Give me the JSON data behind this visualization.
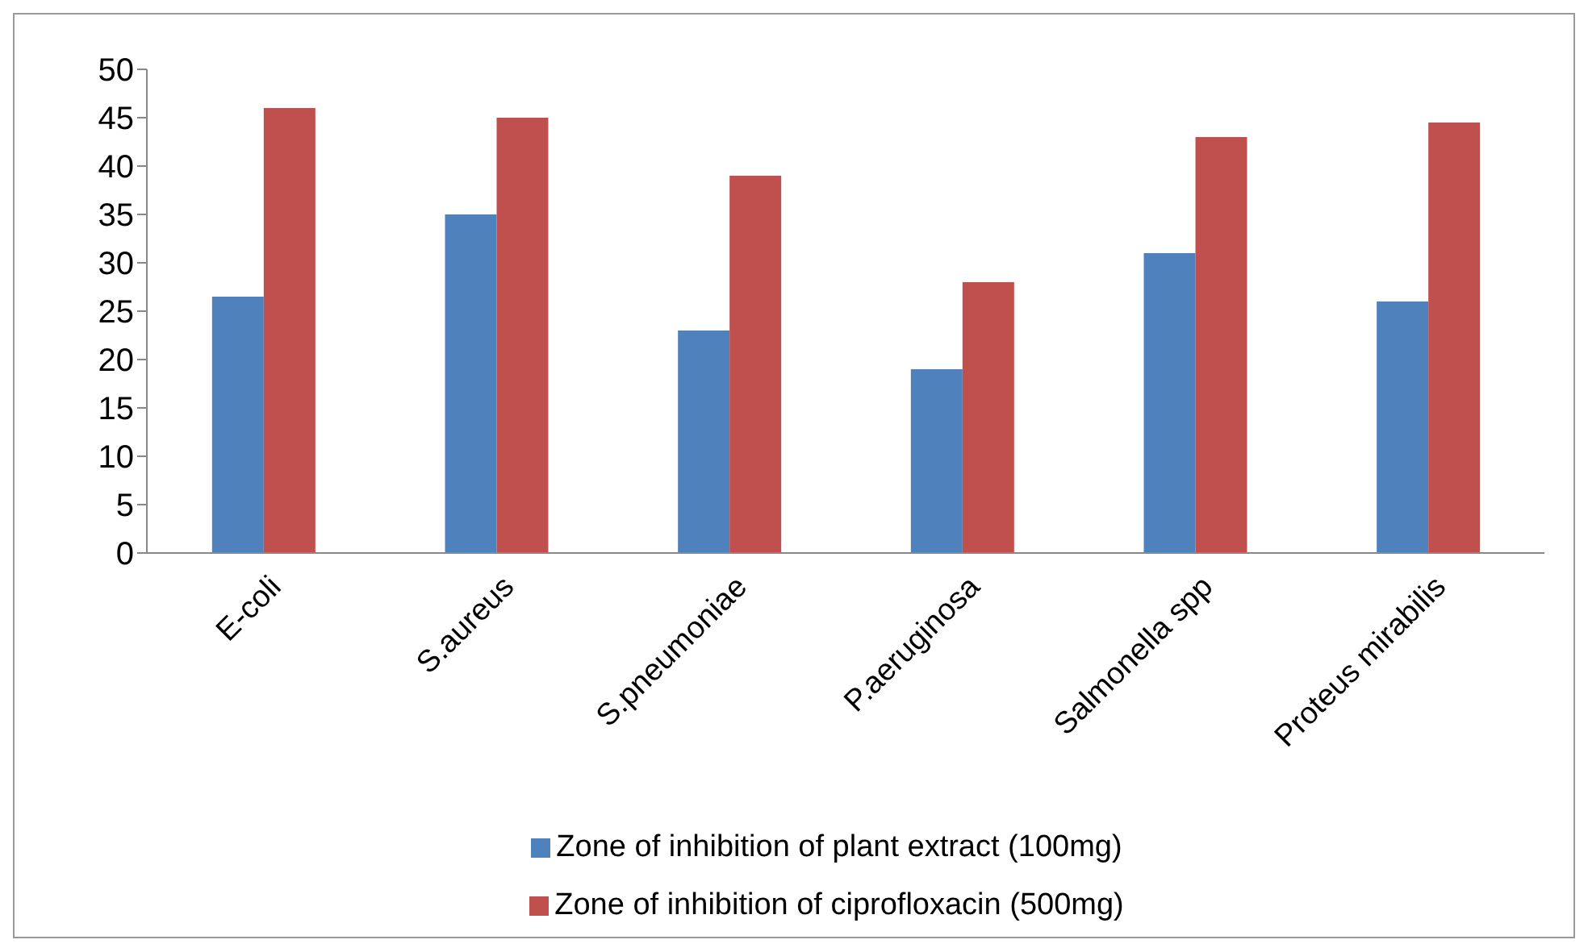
{
  "chart_data": {
    "type": "bar",
    "categories": [
      "E-coli",
      "S.aureus",
      "S.pneumoniae",
      "P.aeruginosa",
      "Salmonella spp",
      "Proteus mirabilis"
    ],
    "series": [
      {
        "name": "Zone of inhibition of plant extract (100mg)",
        "color": "#4f81bd",
        "values": [
          26.5,
          35,
          23,
          19,
          31,
          26
        ]
      },
      {
        "name": "Zone of inhibition of ciprofloxacin (500mg)",
        "color": "#c0504d",
        "values": [
          46,
          45,
          39,
          28,
          43,
          44.5
        ]
      }
    ],
    "ylim": [
      0,
      50
    ],
    "yticks": [
      0,
      5,
      10,
      15,
      20,
      25,
      30,
      35,
      40,
      45,
      50
    ],
    "grid": false,
    "legend": "bottom"
  }
}
